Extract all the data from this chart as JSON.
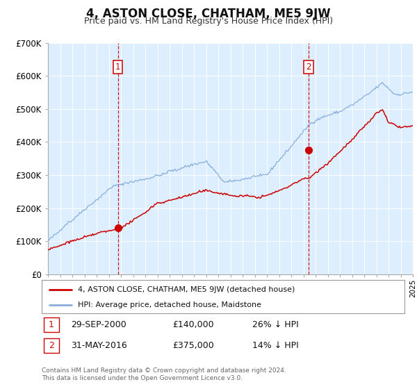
{
  "title": "4, ASTON CLOSE, CHATHAM, ME5 9JW",
  "subtitle": "Price paid vs. HM Land Registry's House Price Index (HPI)",
  "title_fontsize": 12,
  "subtitle_fontsize": 9,
  "background_color": "#ffffff",
  "plot_bg_color": "#ddeeff",
  "grid_color": "#ccddee",
  "legend_label_red": "4, ASTON CLOSE, CHATHAM, ME5 9JW (detached house)",
  "legend_label_blue": "HPI: Average price, detached house, Maidstone",
  "red_color": "#cc0000",
  "blue_color": "#88aedd",
  "x_start_year": 1995,
  "x_end_year": 2025,
  "ylim": [
    0,
    700000
  ],
  "yticks": [
    0,
    100000,
    200000,
    300000,
    400000,
    500000,
    600000,
    700000
  ],
  "ytick_labels": [
    "£0",
    "£100K",
    "£200K",
    "£300K",
    "£400K",
    "£500K",
    "£600K",
    "£700K"
  ],
  "sale1_year": 2000.75,
  "sale1_price": 140000,
  "sale1_label": "1",
  "sale1_date": "29-SEP-2000",
  "sale1_price_str": "£140,000",
  "sale1_pct": "26% ↓ HPI",
  "sale2_year": 2016.42,
  "sale2_price": 375000,
  "sale2_label": "2",
  "sale2_date": "31-MAY-2016",
  "sale2_price_str": "£375,000",
  "sale2_pct": "14% ↓ HPI",
  "footnote": "Contains HM Land Registry data © Crown copyright and database right 2024.\nThis data is licensed under the Open Government Licence v3.0."
}
